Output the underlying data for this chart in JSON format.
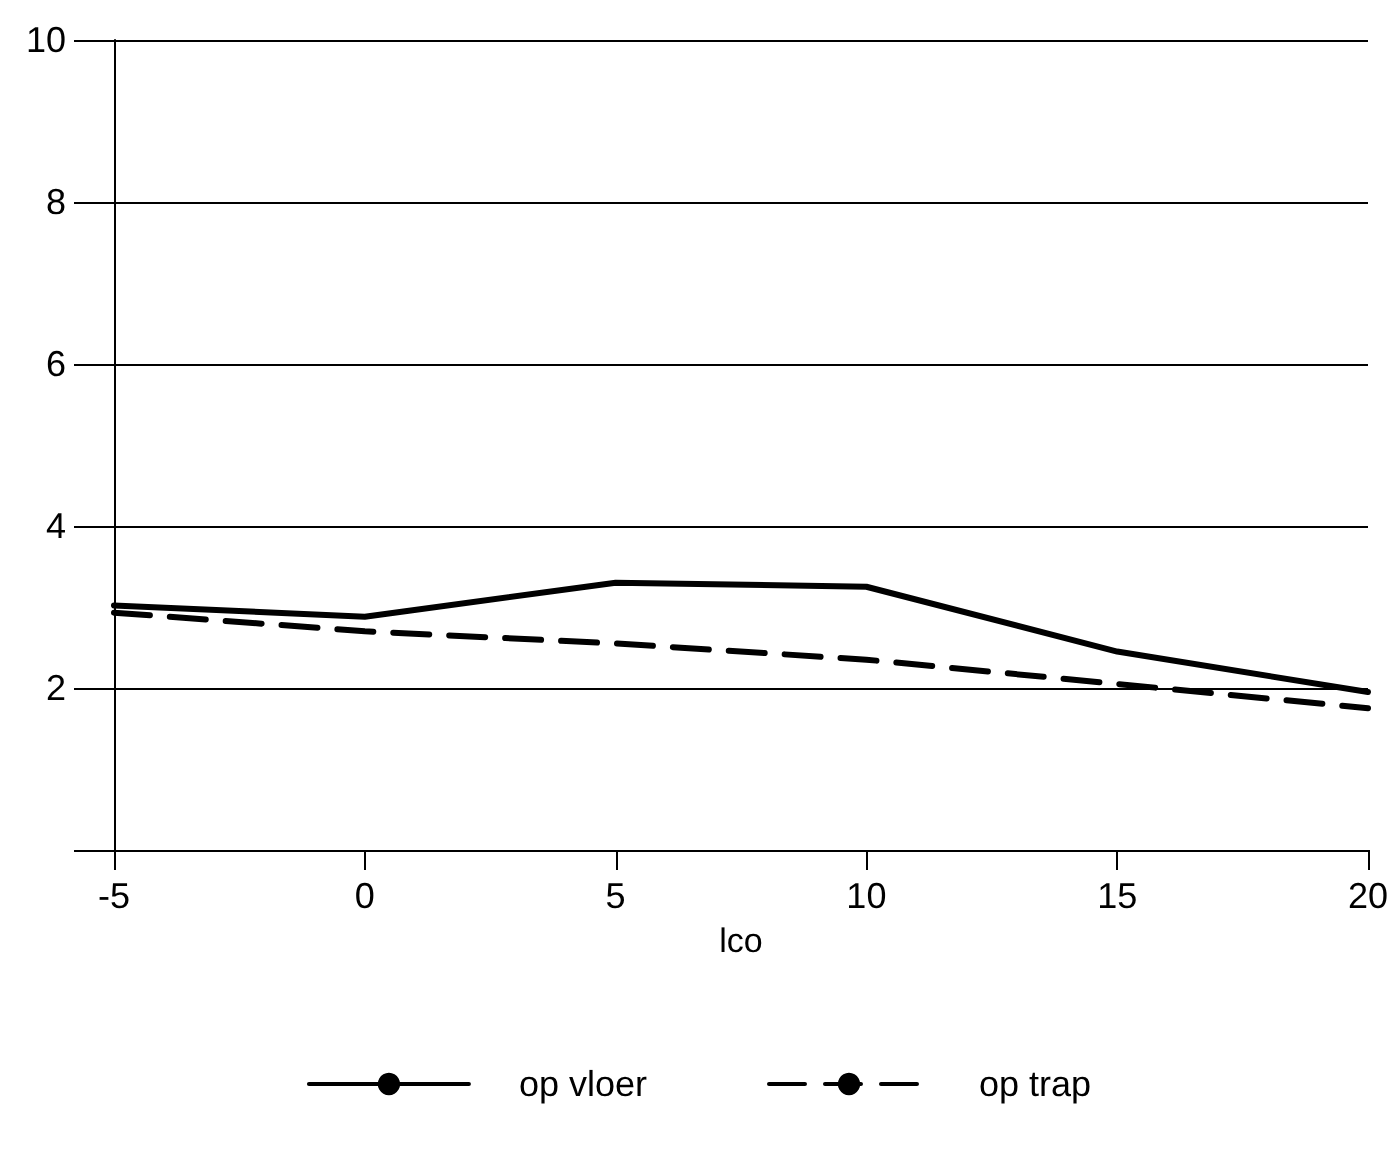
{
  "chart_data": {
    "type": "line",
    "xlabel": "lco",
    "x": [
      -5,
      0,
      5,
      10,
      15,
      20
    ],
    "series": [
      {
        "name": "op vloer",
        "color": "#000000",
        "line_style": "solid",
        "values": [
          3.02,
          2.88,
          3.3,
          3.25,
          2.45,
          1.95
        ]
      },
      {
        "name": "op trap",
        "color": "#000000",
        "line_style": "dashed",
        "values": [
          2.93,
          2.7,
          2.55,
          2.35,
          2.05,
          1.75
        ]
      }
    ],
    "xlim": [
      -5,
      20
    ],
    "xticks": [
      -5,
      0,
      5,
      10,
      15,
      20
    ],
    "ylim": [
      0,
      10
    ],
    "yticks": [
      {
        "value": 0,
        "label": null
      },
      2,
      4,
      6,
      8,
      10
    ],
    "grid": "y",
    "legend": "bottom",
    "marker": "none"
  }
}
